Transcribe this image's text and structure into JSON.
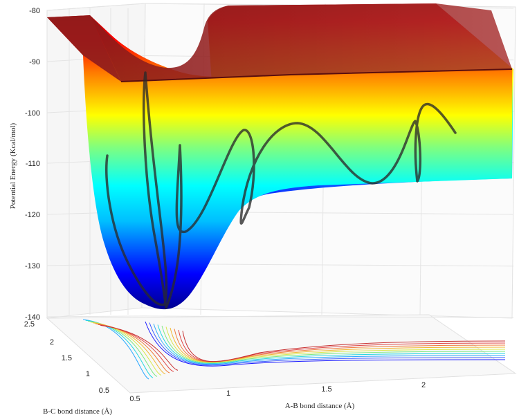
{
  "chart_data": {
    "type": "surface3d",
    "title": "",
    "xlabel": "A-B bond distance (Å)",
    "ylabel": "B-C bond distance (Å)",
    "zlabel": "Potential Energy (Kcal/mol)",
    "xlim": [
      0.5,
      2.4
    ],
    "ylim": [
      0.5,
      2.5
    ],
    "zlim": [
      -140,
      -80
    ],
    "x_ticks": [
      "0.5",
      "1",
      "1.5",
      "2"
    ],
    "y_ticks": [
      "0.5",
      "1",
      "1.5",
      "2",
      "2.5"
    ],
    "z_ticks": [
      "-80",
      "-90",
      "-100",
      "-110",
      "-120",
      "-130",
      "-140"
    ],
    "grid": true,
    "colormap": "jet",
    "surface_cap_color": "#8b1a1a",
    "trajectory_color": "#2a2a2a",
    "contour_projection": true
  }
}
